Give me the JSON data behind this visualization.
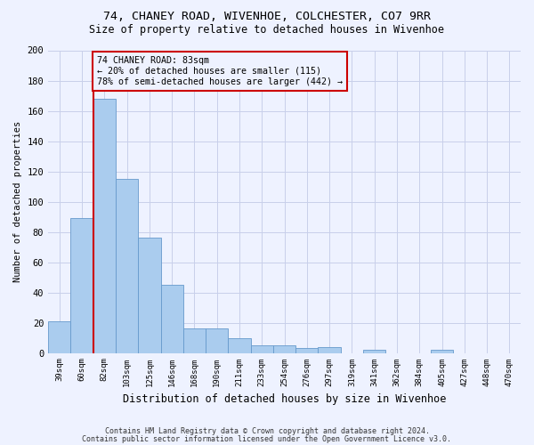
{
  "title1": "74, CHANEY ROAD, WIVENHOE, COLCHESTER, CO7 9RR",
  "title2": "Size of property relative to detached houses in Wivenhoe",
  "xlabel": "Distribution of detached houses by size in Wivenhoe",
  "ylabel": "Number of detached properties",
  "bar_vals": [
    21,
    89,
    168,
    115,
    76,
    45,
    16,
    16,
    10,
    5,
    5,
    3,
    4,
    0,
    2,
    0,
    0,
    2,
    0,
    0,
    0
  ],
  "all_labels": [
    "39sqm",
    "60sqm",
    "82sqm",
    "103sqm",
    "125sqm",
    "146sqm",
    "168sqm",
    "190sqm",
    "211sqm",
    "233sqm",
    "254sqm",
    "276sqm",
    "297sqm",
    "319sqm",
    "341sqm",
    "362sqm",
    "384sqm",
    "405sqm",
    "427sqm",
    "448sqm",
    "470sqm"
  ],
  "bar_color": "#aaccee",
  "bar_edge_color": "#6699cc",
  "ref_line_color": "#cc0000",
  "annotation_text": "74 CHANEY ROAD: 83sqm\n← 20% of detached houses are smaller (115)\n78% of semi-detached houses are larger (442) →",
  "ylim": [
    0,
    200
  ],
  "yticks": [
    0,
    20,
    40,
    60,
    80,
    100,
    120,
    140,
    160,
    180,
    200
  ],
  "footer1": "Contains HM Land Registry data © Crown copyright and database right 2024.",
  "footer2": "Contains public sector information licensed under the Open Government Licence v3.0.",
  "bg_color": "#eef2ff",
  "grid_color": "#c8cfea"
}
